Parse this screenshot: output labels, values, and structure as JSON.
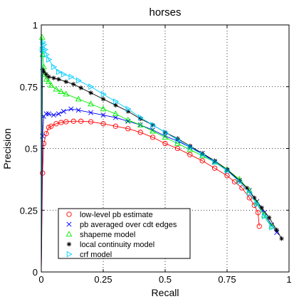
{
  "chart_data": {
    "type": "line",
    "title": "horses",
    "xlabel": "Recall",
    "ylabel": "Precision",
    "xlim": [
      0,
      1
    ],
    "ylim": [
      0,
      1
    ],
    "x_ticks": [
      "0",
      "0.25",
      "0.5",
      "0.75",
      "1"
    ],
    "y_ticks": [
      "0",
      "0.25",
      "0.5",
      "0.75",
      "1"
    ],
    "grid": true,
    "legend_position": "bottom-left",
    "series": [
      {
        "name": "low-level pb estimate",
        "color": "#ff0000",
        "marker": "circle",
        "x": [
          0.0,
          0.005,
          0.01,
          0.02,
          0.03,
          0.04,
          0.06,
          0.08,
          0.1,
          0.13,
          0.16,
          0.2,
          0.25,
          0.3,
          0.35,
          0.4,
          0.45,
          0.5,
          0.55,
          0.6,
          0.65,
          0.7,
          0.75,
          0.78,
          0.81,
          0.84,
          0.86,
          0.875,
          0.88
        ],
        "y": [
          0.0,
          0.4,
          0.52,
          0.56,
          0.585,
          0.59,
          0.6,
          0.605,
          0.608,
          0.61,
          0.61,
          0.608,
          0.6,
          0.59,
          0.58,
          0.565,
          0.545,
          0.52,
          0.5,
          0.475,
          0.45,
          0.42,
          0.39,
          0.365,
          0.34,
          0.3,
          0.27,
          0.24,
          0.185
        ]
      },
      {
        "name": "pb averaged over cdt edges",
        "color": "#0000ff",
        "marker": "x",
        "x": [
          0.0,
          0.005,
          0.01,
          0.02,
          0.03,
          0.05,
          0.07,
          0.09,
          0.12,
          0.15,
          0.2,
          0.25,
          0.3,
          0.35,
          0.4,
          0.45,
          0.5,
          0.55,
          0.6,
          0.65,
          0.7,
          0.75,
          0.8,
          0.84,
          0.87,
          0.9,
          0.93,
          0.95
        ],
        "y": [
          0.0,
          0.55,
          0.63,
          0.64,
          0.64,
          0.635,
          0.64,
          0.65,
          0.66,
          0.655,
          0.645,
          0.635,
          0.625,
          0.61,
          0.595,
          0.575,
          0.55,
          0.53,
          0.505,
          0.48,
          0.445,
          0.41,
          0.37,
          0.33,
          0.285,
          0.24,
          0.19,
          0.16
        ]
      },
      {
        "name": "shapeme model",
        "color": "#00ee00",
        "marker": "triangle-up",
        "x": [
          0.0,
          0.003,
          0.006,
          0.01,
          0.015,
          0.02,
          0.03,
          0.04,
          0.06,
          0.08,
          0.1,
          0.15,
          0.2,
          0.25,
          0.3,
          0.35,
          0.4,
          0.45,
          0.5,
          0.55,
          0.6,
          0.65,
          0.7,
          0.75,
          0.8,
          0.84,
          0.87,
          0.9,
          0.93
        ],
        "y": [
          0.0,
          0.95,
          0.88,
          0.83,
          0.8,
          0.78,
          0.77,
          0.755,
          0.74,
          0.73,
          0.72,
          0.7,
          0.68,
          0.66,
          0.64,
          0.615,
          0.595,
          0.57,
          0.545,
          0.52,
          0.495,
          0.47,
          0.445,
          0.415,
          0.375,
          0.33,
          0.28,
          0.23,
          0.185
        ]
      },
      {
        "name": "local continuity model",
        "color": "#000000",
        "marker": "star",
        "x": [
          0.0,
          0.005,
          0.01,
          0.02,
          0.03,
          0.05,
          0.07,
          0.1,
          0.13,
          0.16,
          0.2,
          0.25,
          0.3,
          0.35,
          0.4,
          0.45,
          0.5,
          0.55,
          0.6,
          0.65,
          0.7,
          0.75,
          0.8,
          0.83,
          0.86,
          0.89,
          0.92,
          0.95,
          0.97
        ],
        "y": [
          0.0,
          0.82,
          0.81,
          0.8,
          0.79,
          0.785,
          0.78,
          0.77,
          0.76,
          0.745,
          0.725,
          0.7,
          0.675,
          0.65,
          0.62,
          0.595,
          0.565,
          0.54,
          0.51,
          0.48,
          0.45,
          0.415,
          0.37,
          0.34,
          0.3,
          0.26,
          0.22,
          0.17,
          0.135
        ]
      },
      {
        "name": "crf model",
        "color": "#00ccff",
        "marker": "triangle-right",
        "x": [
          0.0,
          0.003,
          0.006,
          0.01,
          0.015,
          0.02,
          0.03,
          0.05,
          0.07,
          0.09,
          0.12,
          0.15,
          0.2,
          0.25,
          0.3,
          0.35,
          0.4,
          0.45,
          0.5,
          0.55,
          0.6,
          0.65,
          0.7,
          0.75,
          0.8,
          0.84,
          0.87,
          0.9,
          0.93
        ],
        "y": [
          0.0,
          0.9,
          0.93,
          0.92,
          0.9,
          0.88,
          0.86,
          0.83,
          0.81,
          0.8,
          0.79,
          0.775,
          0.75,
          0.72,
          0.69,
          0.66,
          0.625,
          0.595,
          0.565,
          0.535,
          0.505,
          0.475,
          0.445,
          0.41,
          0.365,
          0.32,
          0.275,
          0.225,
          0.18
        ]
      }
    ]
  }
}
